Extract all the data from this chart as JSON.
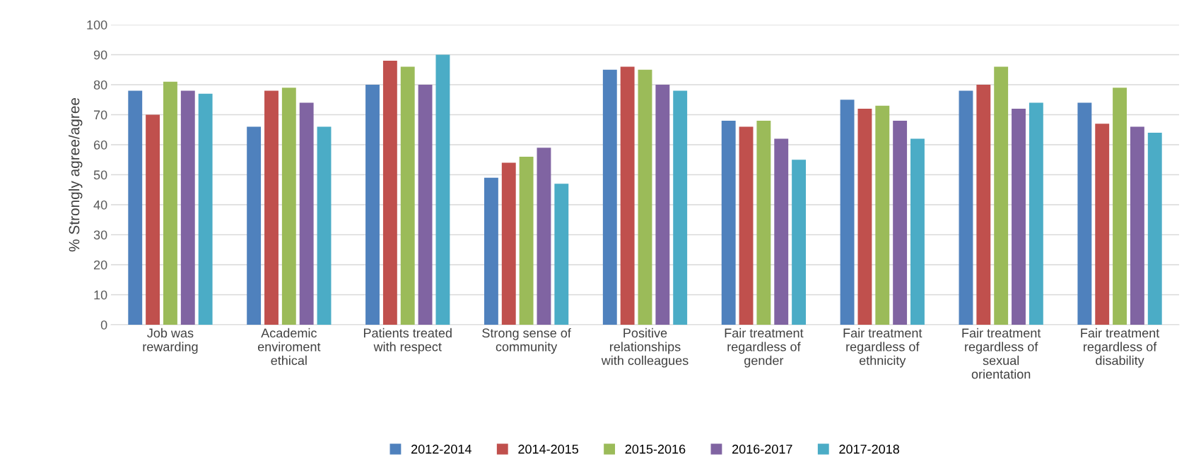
{
  "chart_data": {
    "type": "bar",
    "ylabel": "% Strongly agree/agree",
    "categories": [
      "Job was\nrewarding",
      "Academic\nenviroment\nethical",
      "Patients treated\nwith respect",
      "Strong sense of\ncommunity",
      "Positive\nrelationships\nwith colleagues",
      "Fair treatment\nregardless of\ngender",
      "Fair treatment\nregardless of\nethnicity",
      "Fair treatment\nregardless of\nsexual\norientation",
      "Fair treatment\nregardless of\ndisability"
    ],
    "series": [
      {
        "name": "2012-2014",
        "color": "#4f81bd",
        "values": [
          78,
          66,
          80,
          49,
          85,
          68,
          75,
          78,
          74
        ]
      },
      {
        "name": "2014-2015",
        "color": "#c0504d",
        "values": [
          70,
          78,
          88,
          54,
          86,
          66,
          72,
          80,
          67
        ]
      },
      {
        "name": "2015-2016",
        "color": "#9bbb59",
        "values": [
          81,
          79,
          86,
          56,
          85,
          68,
          73,
          86,
          79
        ]
      },
      {
        "name": "2016-2017",
        "color": "#8064a2",
        "values": [
          78,
          74,
          80,
          59,
          80,
          62,
          68,
          72,
          66
        ]
      },
      {
        "name": "2017-2018",
        "color": "#4bacc6",
        "values": [
          77,
          66,
          90,
          47,
          78,
          55,
          62,
          74,
          64
        ]
      }
    ],
    "ylim": [
      0,
      100
    ],
    "yticks": [
      0,
      10,
      20,
      30,
      40,
      50,
      60,
      70,
      80,
      90,
      100
    ],
    "grid": "y",
    "legend": "bottom"
  }
}
